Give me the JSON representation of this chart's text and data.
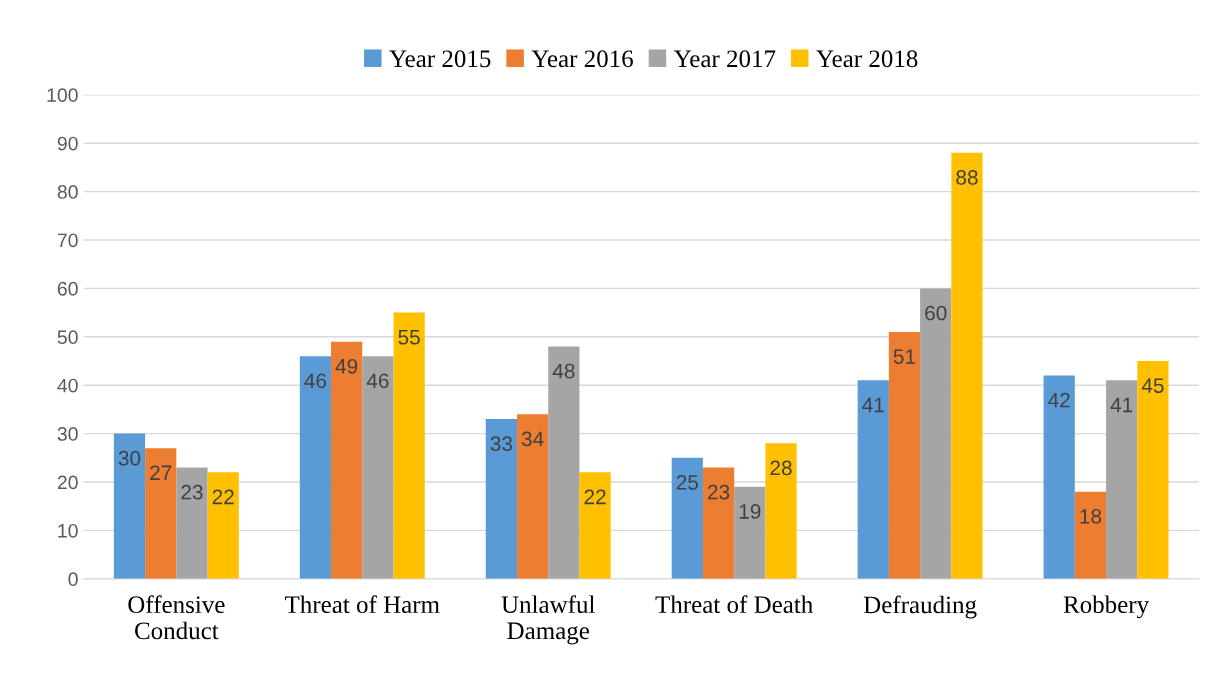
{
  "chart_data": {
    "type": "bar",
    "categories": [
      "Offensive\nConduct",
      "Threat of Harm",
      "Unlawful\nDamage",
      "Threat of Death",
      "Defrauding",
      "Robbery"
    ],
    "series": [
      {
        "name": "Year 2015",
        "color": "#5b9bd5",
        "values": [
          30,
          46,
          33,
          25,
          41,
          42
        ]
      },
      {
        "name": "Year 2016",
        "color": "#ed7d31",
        "values": [
          27,
          49,
          34,
          23,
          51,
          18
        ]
      },
      {
        "name": "Year 2017",
        "color": "#a5a5a5",
        "values": [
          23,
          46,
          48,
          19,
          60,
          41
        ]
      },
      {
        "name": "Year 2018",
        "color": "#ffc000",
        "values": [
          22,
          55,
          22,
          28,
          88,
          45
        ]
      }
    ],
    "ylim": [
      0,
      100
    ],
    "yticks": [
      0,
      10,
      20,
      30,
      40,
      50,
      60,
      70,
      80,
      90,
      100
    ],
    "grid": "y",
    "legend": "top",
    "data_labels": true
  }
}
